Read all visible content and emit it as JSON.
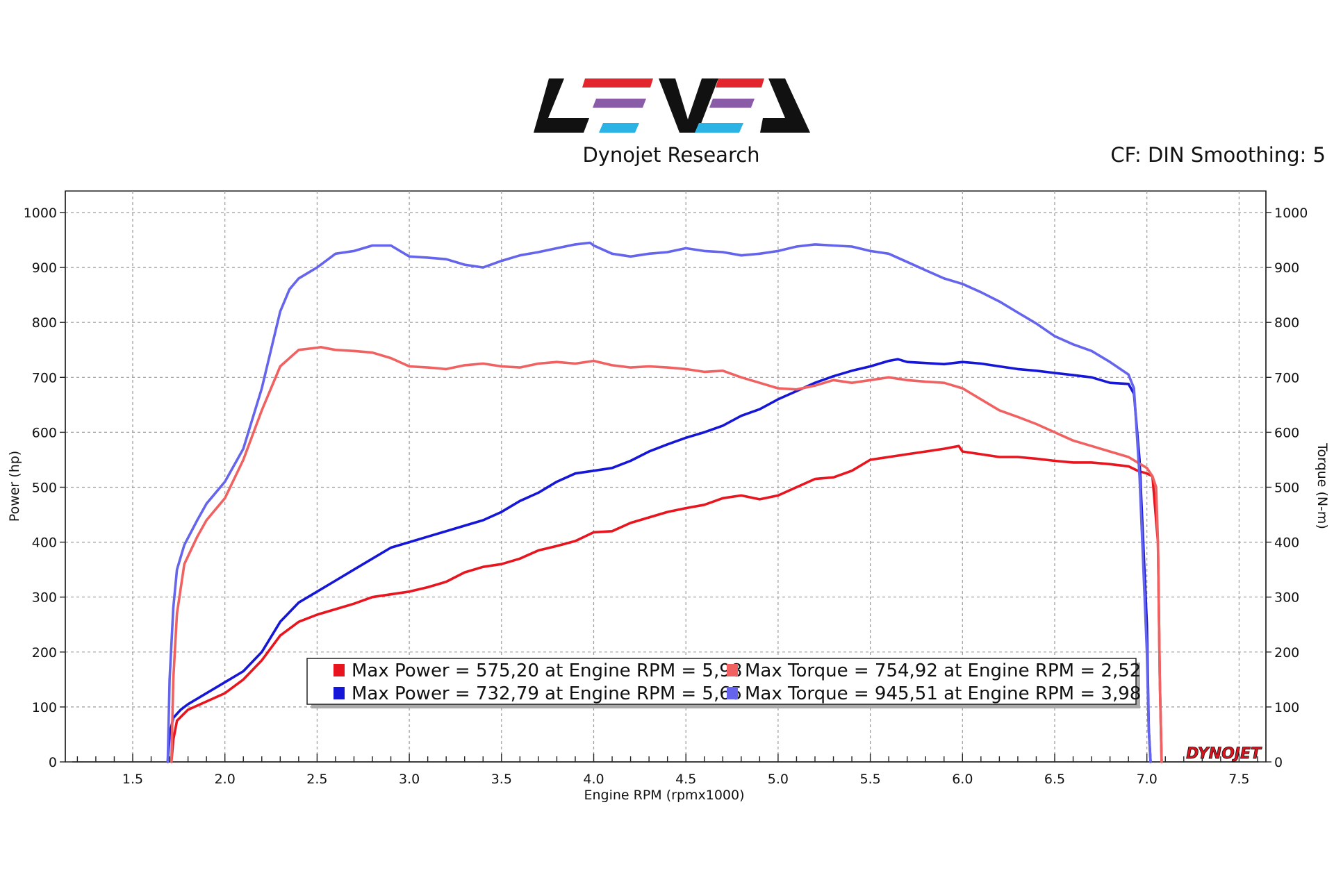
{
  "header": {
    "brand": "LEVEL",
    "subtitle": "Dynojet Research",
    "settings": "CF: DIN Smoothing: 5",
    "watermark": "DYNOJET"
  },
  "colors": {
    "power_red": "#e8141e",
    "torque_red": "#f06262",
    "power_blue": "#1616d8",
    "torque_blue": "#6464ec",
    "logo_red": "#e3262e",
    "logo_purple": "#8a5ca8",
    "logo_cyan": "#2bb3e6"
  },
  "chart_data": {
    "type": "line",
    "xlabel": "Engine RPM (rpmx1000)",
    "ylabel_left": "Power (hp)",
    "ylabel_right": "Torque (N-m)",
    "xlim": [
      1.2,
      7.6
    ],
    "ylim": [
      0,
      1040
    ],
    "xticks": [
      "1.5",
      "2.0",
      "2.5",
      "3.0",
      "3.5",
      "4.0",
      "4.5",
      "5.0",
      "5.5",
      "6.0",
      "6.5",
      "7.0",
      "7.5"
    ],
    "xtick_values": [
      1.5,
      2.0,
      2.5,
      3.0,
      3.5,
      4.0,
      4.5,
      5.0,
      5.5,
      6.0,
      6.5,
      7.0,
      7.5
    ],
    "yticks": [
      "0",
      "100",
      "200",
      "300",
      "400",
      "500",
      "600",
      "700",
      "800",
      "900",
      "1000"
    ],
    "ytick_values": [
      0,
      100,
      200,
      300,
      400,
      500,
      600,
      700,
      800,
      900,
      1000
    ],
    "grid": true,
    "legend_position": "bottom-center",
    "legend": [
      "Max Power = 575,20 at Engine RPM = 5,98",
      "Max Torque = 754,92 at Engine RPM = 2,52",
      "Max Power = 732,79 at Engine RPM = 5,65",
      "Max Torque = 945,51 at Engine RPM = 3,98"
    ],
    "series": [
      {
        "color": "#e8141e",
        "axis": "left",
        "x": [
          1.71,
          1.72,
          1.74,
          1.8,
          1.9,
          2.0,
          2.1,
          2.2,
          2.3,
          2.4,
          2.5,
          2.6,
          2.7,
          2.8,
          2.9,
          3.0,
          3.1,
          3.2,
          3.3,
          3.4,
          3.5,
          3.6,
          3.7,
          3.8,
          3.9,
          4.0,
          4.1,
          4.2,
          4.3,
          4.4,
          4.5,
          4.6,
          4.7,
          4.8,
          4.9,
          5.0,
          5.1,
          5.2,
          5.3,
          5.4,
          5.5,
          5.6,
          5.7,
          5.8,
          5.9,
          5.98,
          6.0,
          6.1,
          6.2,
          6.3,
          6.4,
          6.5,
          6.6,
          6.7,
          6.8,
          6.9,
          6.95,
          7.0,
          7.03,
          7.06,
          7.07,
          7.08
        ],
        "values": [
          0,
          40,
          75,
          95,
          110,
          125,
          150,
          185,
          230,
          255,
          268,
          278,
          288,
          300,
          305,
          310,
          318,
          328,
          345,
          355,
          360,
          370,
          385,
          393,
          402,
          418,
          420,
          435,
          445,
          455,
          462,
          468,
          480,
          485,
          478,
          485,
          500,
          515,
          518,
          530,
          550,
          555,
          560,
          565,
          570,
          575,
          565,
          560,
          555,
          555,
          552,
          548,
          545,
          545,
          542,
          538,
          530,
          525,
          520,
          400,
          150,
          0
        ]
      },
      {
        "color": "#1616d8",
        "axis": "left",
        "x": [
          1.69,
          1.7,
          1.72,
          1.76,
          1.8,
          1.9,
          2.0,
          2.1,
          2.2,
          2.3,
          2.4,
          2.5,
          2.6,
          2.7,
          2.8,
          2.9,
          3.0,
          3.1,
          3.2,
          3.3,
          3.4,
          3.5,
          3.6,
          3.7,
          3.8,
          3.9,
          4.0,
          4.1,
          4.2,
          4.3,
          4.4,
          4.5,
          4.6,
          4.7,
          4.8,
          4.9,
          5.0,
          5.1,
          5.2,
          5.3,
          5.4,
          5.5,
          5.6,
          5.65,
          5.7,
          5.8,
          5.9,
          6.0,
          6.1,
          6.2,
          6.3,
          6.4,
          6.5,
          6.6,
          6.7,
          6.8,
          6.9,
          6.93,
          6.96,
          7.0,
          7.01,
          7.02
        ],
        "values": [
          0,
          50,
          80,
          95,
          105,
          125,
          145,
          165,
          200,
          255,
          290,
          310,
          330,
          350,
          370,
          390,
          400,
          410,
          420,
          430,
          440,
          455,
          475,
          490,
          510,
          525,
          530,
          535,
          548,
          565,
          578,
          590,
          600,
          612,
          630,
          642,
          660,
          675,
          690,
          702,
          712,
          720,
          730,
          733,
          728,
          726,
          724,
          728,
          725,
          720,
          715,
          712,
          708,
          704,
          700,
          690,
          688,
          670,
          550,
          250,
          60,
          0
        ]
      },
      {
        "color": "#f06262",
        "axis": "right",
        "x": [
          1.71,
          1.72,
          1.74,
          1.78,
          1.85,
          1.9,
          2.0,
          2.1,
          2.2,
          2.3,
          2.4,
          2.5,
          2.52,
          2.6,
          2.7,
          2.8,
          2.9,
          3.0,
          3.1,
          3.2,
          3.3,
          3.4,
          3.5,
          3.6,
          3.7,
          3.8,
          3.9,
          4.0,
          4.1,
          4.2,
          4.3,
          4.4,
          4.5,
          4.6,
          4.7,
          4.8,
          4.9,
          5.0,
          5.1,
          5.2,
          5.3,
          5.4,
          5.5,
          5.6,
          5.7,
          5.8,
          5.9,
          6.0,
          6.1,
          6.2,
          6.3,
          6.4,
          6.5,
          6.6,
          6.7,
          6.8,
          6.9,
          6.95,
          7.0,
          7.03,
          7.05,
          7.06,
          7.07,
          7.08
        ],
        "values": [
          0,
          150,
          270,
          360,
          410,
          440,
          480,
          550,
          640,
          720,
          750,
          754,
          755,
          750,
          748,
          745,
          735,
          720,
          718,
          715,
          722,
          725,
          720,
          718,
          725,
          728,
          725,
          730,
          722,
          718,
          720,
          718,
          715,
          710,
          712,
          700,
          690,
          680,
          678,
          685,
          695,
          690,
          695,
          700,
          695,
          692,
          690,
          680,
          660,
          640,
          628,
          615,
          600,
          585,
          575,
          565,
          555,
          545,
          535,
          520,
          500,
          400,
          150,
          0
        ]
      },
      {
        "color": "#6464ec",
        "axis": "right",
        "x": [
          1.69,
          1.7,
          1.72,
          1.74,
          1.78,
          1.85,
          1.9,
          2.0,
          2.1,
          2.2,
          2.3,
          2.35,
          2.4,
          2.5,
          2.6,
          2.7,
          2.8,
          2.9,
          3.0,
          3.1,
          3.2,
          3.3,
          3.4,
          3.5,
          3.6,
          3.7,
          3.8,
          3.9,
          3.98,
          4.0,
          4.1,
          4.2,
          4.3,
          4.4,
          4.5,
          4.6,
          4.7,
          4.8,
          4.9,
          5.0,
          5.1,
          5.2,
          5.3,
          5.4,
          5.5,
          5.6,
          5.7,
          5.8,
          5.9,
          6.0,
          6.1,
          6.2,
          6.3,
          6.4,
          6.5,
          6.6,
          6.7,
          6.8,
          6.9,
          6.93,
          6.96,
          7.0,
          7.01,
          7.02
        ],
        "values": [
          0,
          150,
          280,
          350,
          395,
          440,
          470,
          510,
          570,
          680,
          820,
          860,
          880,
          900,
          925,
          930,
          940,
          940,
          920,
          918,
          915,
          905,
          900,
          912,
          922,
          928,
          935,
          942,
          945,
          940,
          925,
          920,
          925,
          928,
          935,
          930,
          928,
          922,
          925,
          930,
          938,
          942,
          940,
          938,
          930,
          925,
          910,
          895,
          880,
          870,
          855,
          838,
          818,
          798,
          775,
          760,
          748,
          728,
          705,
          680,
          520,
          200,
          60,
          0
        ]
      }
    ]
  }
}
